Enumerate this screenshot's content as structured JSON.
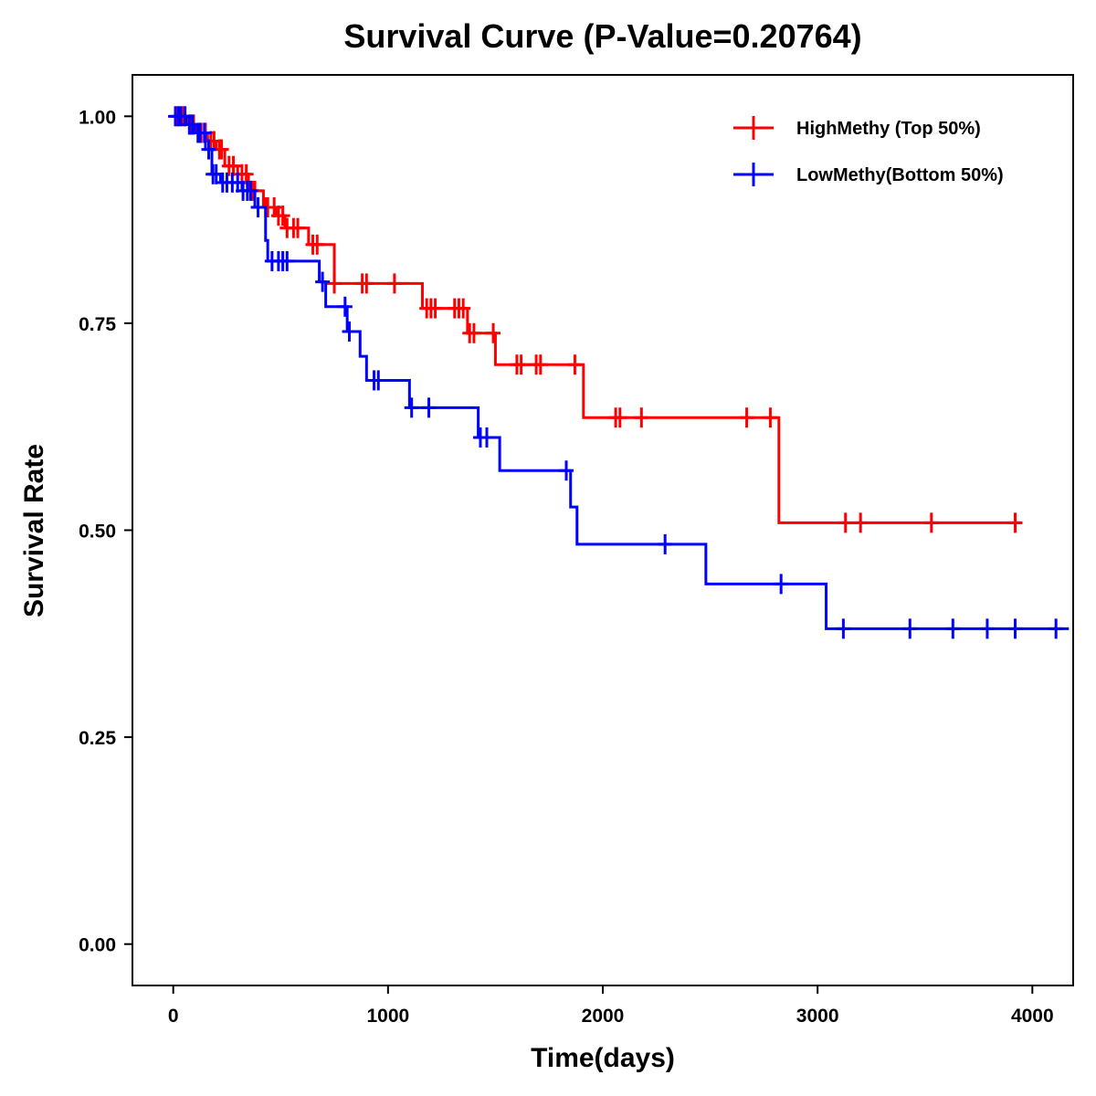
{
  "chart_data": {
    "type": "line",
    "subtype": "kaplan-meier step",
    "title": "Survival Curve (P-Value=0.20764)",
    "xlabel": "Time(days)",
    "ylabel": "Survival Rate",
    "xlim": [
      -190,
      4190
    ],
    "ylim": [
      -0.05,
      1.05
    ],
    "xticks": [
      0,
      1000,
      2000,
      3000,
      4000
    ],
    "xtick_labels": [
      "0",
      "1000",
      "2000",
      "3000",
      "4000"
    ],
    "yticks": [
      0,
      0.25,
      0.5,
      0.75,
      1
    ],
    "ytick_labels": [
      "0.00",
      "0.25",
      "0.50",
      "0.75",
      "1.00"
    ],
    "legend_position": "top-right",
    "series": [
      {
        "name": "HighMethy (Top 50%)",
        "color": "#ff0000",
        "steps": [
          [
            0,
            1.0
          ],
          [
            70,
            0.99
          ],
          [
            110,
            0.98
          ],
          [
            160,
            0.97
          ],
          [
            200,
            0.96
          ],
          [
            240,
            0.94
          ],
          [
            300,
            0.93
          ],
          [
            350,
            0.91
          ],
          [
            420,
            0.89
          ],
          [
            480,
            0.88
          ],
          [
            520,
            0.865
          ],
          [
            630,
            0.845
          ],
          [
            750,
            0.798
          ],
          [
            1160,
            0.768
          ],
          [
            1370,
            0.738
          ],
          [
            1500,
            0.7
          ],
          [
            1910,
            0.636
          ],
          [
            2820,
            0.509
          ],
          [
            3950,
            0.509
          ]
        ],
        "censor_x": [
          20,
          45,
          80,
          95,
          130,
          150,
          175,
          190,
          215,
          225,
          260,
          280,
          320,
          340,
          370,
          380,
          430,
          440,
          470,
          490,
          510,
          530,
          560,
          580,
          650,
          670,
          750,
          880,
          900,
          1030,
          1180,
          1200,
          1220,
          1310,
          1330,
          1350,
          1380,
          1400,
          1490,
          1600,
          1620,
          1690,
          1710,
          1870,
          2060,
          2080,
          2180,
          2670,
          2780,
          3130,
          3200,
          3530,
          3920
        ]
      },
      {
        "name": "LowMethy(Bottom 50%)",
        "color": "#0000ff",
        "steps": [
          [
            0,
            1.0
          ],
          [
            60,
            0.99
          ],
          [
            100,
            0.98
          ],
          [
            150,
            0.96
          ],
          [
            180,
            0.93
          ],
          [
            220,
            0.92
          ],
          [
            320,
            0.91
          ],
          [
            380,
            0.89
          ],
          [
            430,
            0.85
          ],
          [
            440,
            0.825
          ],
          [
            680,
            0.8
          ],
          [
            710,
            0.77
          ],
          [
            810,
            0.74
          ],
          [
            870,
            0.71
          ],
          [
            900,
            0.681
          ],
          [
            1100,
            0.648
          ],
          [
            1420,
            0.612
          ],
          [
            1520,
            0.572
          ],
          [
            1850,
            0.528
          ],
          [
            1880,
            0.483
          ],
          [
            2480,
            0.435
          ],
          [
            3040,
            0.381
          ],
          [
            4170,
            0.381
          ]
        ],
        "censor_x": [
          10,
          25,
          35,
          55,
          75,
          90,
          115,
          125,
          145,
          165,
          185,
          200,
          230,
          250,
          275,
          300,
          325,
          345,
          360,
          395,
          460,
          490,
          510,
          530,
          695,
          800,
          820,
          935,
          955,
          1110,
          1190,
          1430,
          1460,
          1830,
          2290,
          2830,
          3120,
          3430,
          3630,
          3790,
          3920,
          4110
        ]
      }
    ]
  }
}
